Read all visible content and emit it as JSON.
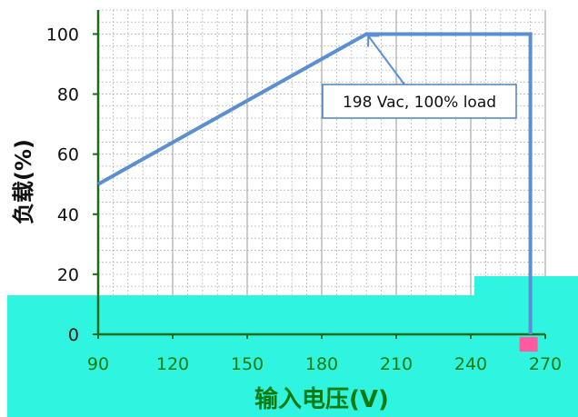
{
  "chart_data": {
    "type": "line",
    "xlabel": "输入电压(V)",
    "ylabel": "负载(%)",
    "xlim": [
      90,
      270
    ],
    "ylim": [
      0,
      100
    ],
    "x_ticks": [
      90,
      120,
      150,
      180,
      210,
      240,
      270
    ],
    "y_ticks": [
      0,
      20,
      40,
      60,
      80,
      100
    ],
    "grid": true,
    "series": [
      {
        "x": [
          90,
          198,
          264,
          264
        ],
        "y": [
          50,
          100,
          100,
          0
        ]
      }
    ],
    "annotations": [
      {
        "text": "198 Vac, 100% load",
        "x": 198,
        "y": 100
      }
    ],
    "colors": {
      "line": "#5b8fd0",
      "axis": "#1b6b1b",
      "tick_label": "#0d7a0d",
      "grid": "#b8b8b8",
      "callout_border": "#4f81bd",
      "overlay": "#2ff5e0",
      "marker": "#ff5aa0"
    }
  }
}
